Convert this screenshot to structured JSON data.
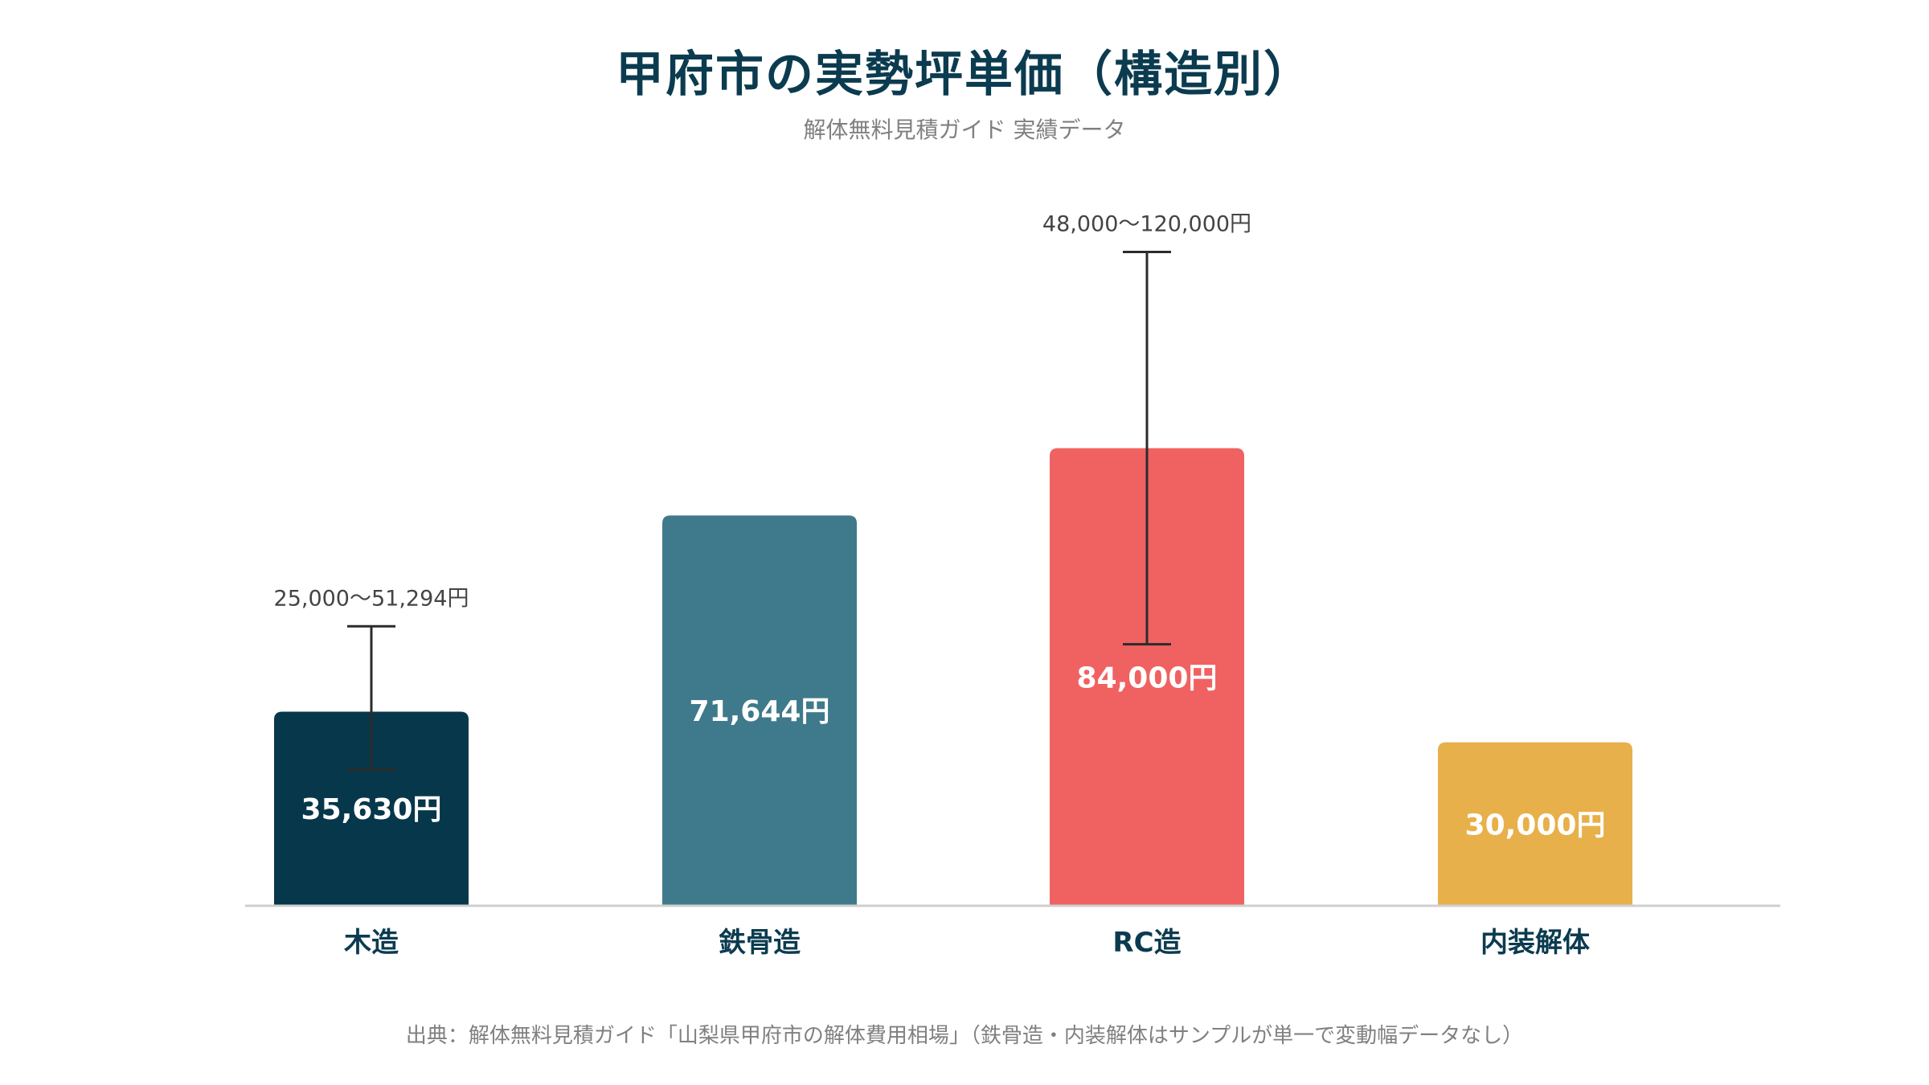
{
  "title": "甲府市の実勢坪単価（構造別）",
  "subtitle": "解体無料見積ガイド 実績データ",
  "source": "出典：解体無料見積ガイド「山梨県甲府市の解体費用相場」（鉄骨造・内装解体はサンプルが単一で変動幅データなし）",
  "chart_data": {
    "type": "bar",
    "title": "甲府市の実勢坪単価（構造別）",
    "categories": [
      "木造",
      "鉄骨造",
      "RC造",
      "内装解体"
    ],
    "values": [
      35630,
      71644,
      84000,
      30000
    ],
    "value_labels": [
      "35,630円",
      "71,644円",
      "84,000円",
      "30,000円"
    ],
    "ranges": [
      {
        "low": 25000,
        "high": 51294,
        "label": "25,000〜51,294円"
      },
      null,
      {
        "low": 48000,
        "high": 120000,
        "label": "48,000〜120,000円"
      },
      null
    ],
    "colors": [
      "#07374a",
      "#3e7a8b",
      "#f06262",
      "#e8b04a"
    ],
    "ylim": [
      0,
      122000
    ],
    "grid": false,
    "legend": "none"
  }
}
